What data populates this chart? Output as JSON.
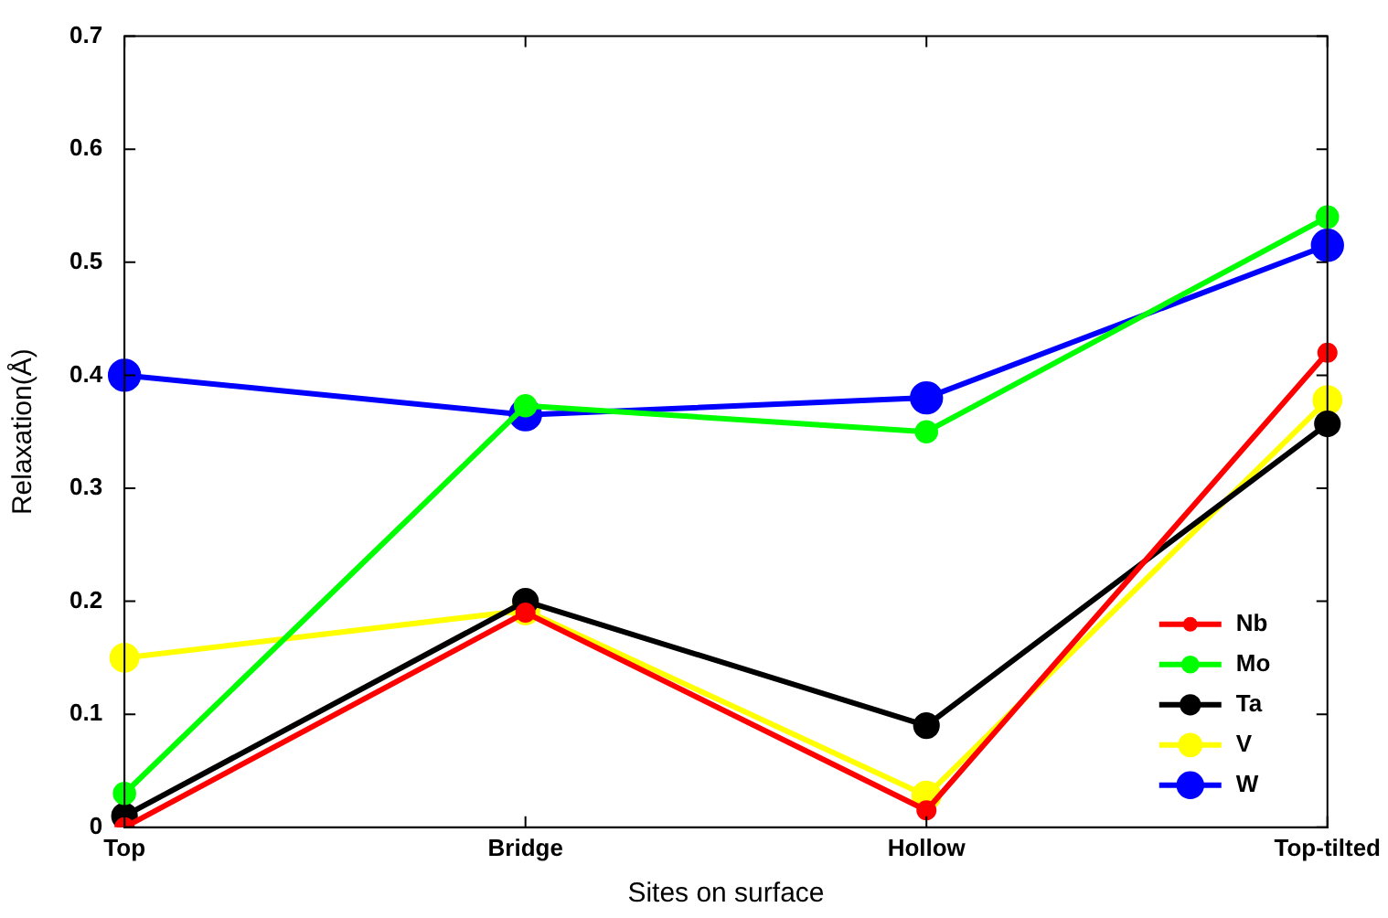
{
  "chart_data": {
    "type": "line",
    "xlabel": "Sites on surface",
    "ylabel": "Relaxation(Å)",
    "categories": [
      "Top",
      "Bridge",
      "Hollow",
      "Top-tilted"
    ],
    "series": [
      {
        "name": "Nb",
        "color": "#ff0000",
        "values": [
          0.0,
          0.19,
          0.015,
          0.42
        ]
      },
      {
        "name": "Mo",
        "color": "#00ff00",
        "values": [
          0.03,
          0.373,
          0.35,
          0.54
        ]
      },
      {
        "name": "Ta",
        "color": "#000000",
        "values": [
          0.01,
          0.2,
          0.09,
          0.357
        ]
      },
      {
        "name": "V",
        "color": "#ffff00",
        "values": [
          0.15,
          0.192,
          0.028,
          0.378
        ]
      },
      {
        "name": "W",
        "color": "#0000ff",
        "values": [
          0.4,
          0.365,
          0.38,
          0.515
        ]
      }
    ],
    "ylim": [
      0,
      0.7
    ],
    "yticks": [
      0,
      0.1,
      0.2,
      0.3,
      0.4,
      0.5,
      0.6,
      0.7
    ],
    "grid": false,
    "legend": "bottom right",
    "marker": "circle",
    "line_style": "solid"
  }
}
